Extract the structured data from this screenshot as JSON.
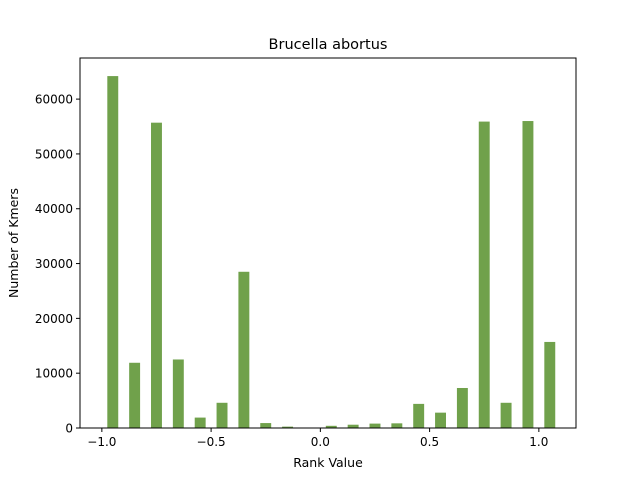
{
  "chart_data": {
    "type": "bar",
    "title": "Brucella abortus",
    "xlabel": "Rank Value",
    "ylabel": "Number of Kmers",
    "xlim": [
      -1.1,
      1.17
    ],
    "ylim": [
      0,
      67500
    ],
    "xticks": [
      {
        "value": -1.0,
        "label": "−1.0"
      },
      {
        "value": -0.5,
        "label": "−0.5"
      },
      {
        "value": 0.0,
        "label": "0.0"
      },
      {
        "value": 0.5,
        "label": "0.5"
      },
      {
        "value": 1.0,
        "label": "1.0"
      }
    ],
    "yticks": [
      {
        "value": 0,
        "label": "0"
      },
      {
        "value": 10000,
        "label": "10000"
      },
      {
        "value": 20000,
        "label": "20000"
      },
      {
        "value": 30000,
        "label": "30000"
      },
      {
        "value": 40000,
        "label": "40000"
      },
      {
        "value": 50000,
        "label": "50000"
      },
      {
        "value": 60000,
        "label": "60000"
      }
    ],
    "bar_width": 0.05,
    "color": "#70a14b",
    "grid": false,
    "bars": [
      {
        "x": -0.95,
        "value": 64200
      },
      {
        "x": -0.85,
        "value": 11900
      },
      {
        "x": -0.75,
        "value": 55700
      },
      {
        "x": -0.65,
        "value": 12500
      },
      {
        "x": -0.55,
        "value": 1900
      },
      {
        "x": -0.45,
        "value": 4600
      },
      {
        "x": -0.35,
        "value": 28500
      },
      {
        "x": -0.25,
        "value": 900
      },
      {
        "x": -0.15,
        "value": 250
      },
      {
        "x": -0.05,
        "value": 80
      },
      {
        "x": 0.05,
        "value": 400
      },
      {
        "x": 0.15,
        "value": 600
      },
      {
        "x": 0.25,
        "value": 800
      },
      {
        "x": 0.35,
        "value": 850
      },
      {
        "x": 0.45,
        "value": 4400
      },
      {
        "x": 0.55,
        "value": 2800
      },
      {
        "x": 0.65,
        "value": 7300
      },
      {
        "x": 0.75,
        "value": 55900
      },
      {
        "x": 0.85,
        "value": 4600
      },
      {
        "x": 0.95,
        "value": 56000
      },
      {
        "x": 1.05,
        "value": 15700
      }
    ]
  }
}
